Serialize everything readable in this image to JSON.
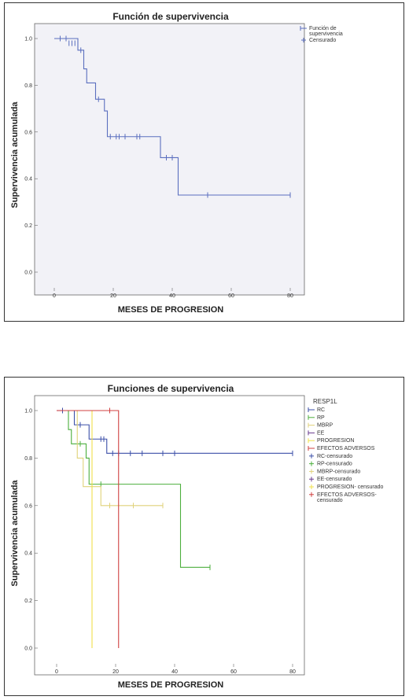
{
  "chart_data": [
    {
      "type": "line",
      "title": "Función de supervivencia",
      "xlabel": "MESES DE PROGRESION",
      "ylabel": "Supervivencia acumulada",
      "xlim": [
        0,
        80
      ],
      "ylim": [
        0,
        1
      ],
      "xticks": [
        "0",
        "20",
        "40",
        "60",
        "80"
      ],
      "yticks": [
        "0.0",
        "0.2",
        "0.4",
        "0.6",
        "0.8",
        "1.0"
      ],
      "grid": false,
      "legend_position": "right",
      "legend_title": "",
      "legend": [
        {
          "label": "Función de supervivencia",
          "kind": "line",
          "color": "#5b6fbf"
        },
        {
          "label": "Censurado",
          "kind": "censor",
          "color": "#5b6fbf"
        }
      ],
      "series": [
        {
          "label": "Función de supervivencia",
          "color": "#5b6fbf",
          "steps": [
            [
              0,
              1.0
            ],
            [
              8,
              0.95
            ],
            [
              10,
              0.87
            ],
            [
              11,
              0.81
            ],
            [
              14,
              0.74
            ],
            [
              17,
              0.69
            ],
            [
              18,
              0.58
            ],
            [
              36,
              0.49
            ],
            [
              42,
              0.33
            ],
            [
              80,
              0.33
            ]
          ],
          "censored": [
            [
              2,
              1.0
            ],
            [
              4,
              1.0
            ],
            [
              5,
              0.98
            ],
            [
              6,
              0.98
            ],
            [
              7,
              0.98
            ],
            [
              9,
              0.95
            ],
            [
              15,
              0.74
            ],
            [
              19,
              0.58
            ],
            [
              21,
              0.58
            ],
            [
              22,
              0.58
            ],
            [
              24,
              0.58
            ],
            [
              28,
              0.58
            ],
            [
              29,
              0.58
            ],
            [
              38,
              0.49
            ],
            [
              40,
              0.49
            ],
            [
              52,
              0.33
            ],
            [
              80,
              0.33
            ]
          ]
        }
      ]
    },
    {
      "type": "line",
      "title": "Funciones de supervivencia",
      "xlabel": "MESES DE PROGRESION",
      "ylabel": "Supervivencia acumulada",
      "xlim": [
        0,
        80
      ],
      "ylim": [
        0,
        1
      ],
      "xticks": [
        "0",
        "20",
        "40",
        "60",
        "80"
      ],
      "yticks": [
        "0.0",
        "0.2",
        "0.4",
        "0.6",
        "0.8",
        "1.0"
      ],
      "grid": false,
      "legend_position": "right",
      "legend_title": "RESP1L",
      "legend": [
        {
          "label": "RC",
          "kind": "line",
          "color": "#3b4fa8"
        },
        {
          "label": "RP",
          "kind": "line",
          "color": "#4caf3c"
        },
        {
          "label": "MBRP",
          "kind": "line",
          "color": "#e0d27a"
        },
        {
          "label": "EE",
          "kind": "line",
          "color": "#6a3b8f"
        },
        {
          "label": "PROGRESION",
          "kind": "line",
          "color": "#f0e04a"
        },
        {
          "label": "EFECTOS ADVERSOS",
          "kind": "line",
          "color": "#d04040"
        },
        {
          "label": "RC-censurado",
          "kind": "censor",
          "color": "#3b4fa8"
        },
        {
          "label": "RP-censurado",
          "kind": "censor",
          "color": "#4caf3c"
        },
        {
          "label": "MBRP-censurado",
          "kind": "censor",
          "color": "#e0d27a"
        },
        {
          "label": "EE-censurado",
          "kind": "censor",
          "color": "#6a3b8f"
        },
        {
          "label": "PROGRESION- censurado",
          "kind": "censor",
          "color": "#f0e04a"
        },
        {
          "label": "EFECTOS ADVERSOS-censurado",
          "kind": "censor",
          "color": "#d04040"
        }
      ],
      "series": [
        {
          "label": "RC",
          "color": "#3b4fa8",
          "steps": [
            [
              0,
              1.0
            ],
            [
              6,
              0.94
            ],
            [
              11,
              0.88
            ],
            [
              17,
              0.82
            ],
            [
              80,
              0.82
            ]
          ],
          "censored": [
            [
              2,
              1.0
            ],
            [
              8,
              0.94
            ],
            [
              15,
              0.88
            ],
            [
              16,
              0.88
            ],
            [
              19,
              0.82
            ],
            [
              21,
              0.82
            ],
            [
              25,
              0.82
            ],
            [
              29,
              0.82
            ],
            [
              36,
              0.82
            ],
            [
              40,
              0.82
            ],
            [
              80,
              0.82
            ]
          ]
        },
        {
          "label": "RP",
          "color": "#4caf3c",
          "steps": [
            [
              0,
              1.0
            ],
            [
              4,
              0.92
            ],
            [
              5,
              0.86
            ],
            [
              10,
              0.8
            ],
            [
              11,
              0.69
            ],
            [
              42,
              0.34
            ],
            [
              52,
              0.34
            ]
          ],
          "censored": [
            [
              8,
              0.86
            ],
            [
              15,
              0.69
            ],
            [
              52,
              0.34
            ]
          ]
        },
        {
          "label": "MBRP",
          "color": "#e0d27a",
          "steps": [
            [
              0,
              1.0
            ],
            [
              7,
              0.8
            ],
            [
              9,
              0.68
            ],
            [
              15,
              0.6
            ],
            [
              36,
              0.6
            ]
          ],
          "censored": [
            [
              12,
              0.68
            ],
            [
              18,
              0.6
            ],
            [
              26,
              0.6
            ],
            [
              36,
              0.6
            ]
          ]
        },
        {
          "label": "EE",
          "color": "#6a3b8f",
          "steps": [
            [
              0,
              1.0
            ],
            [
              2,
              1.0
            ]
          ],
          "censored": []
        },
        {
          "label": "PROGRESION",
          "color": "#f0e04a",
          "steps": [
            [
              0,
              1.0
            ],
            [
              12,
              0.0
            ]
          ],
          "censored": []
        },
        {
          "label": "EFECTOS ADVERSOS",
          "color": "#d04040",
          "steps": [
            [
              0,
              1.0
            ],
            [
              21,
              0.0
            ]
          ],
          "censored": [
            [
              18,
              1.0
            ]
          ]
        }
      ]
    }
  ]
}
